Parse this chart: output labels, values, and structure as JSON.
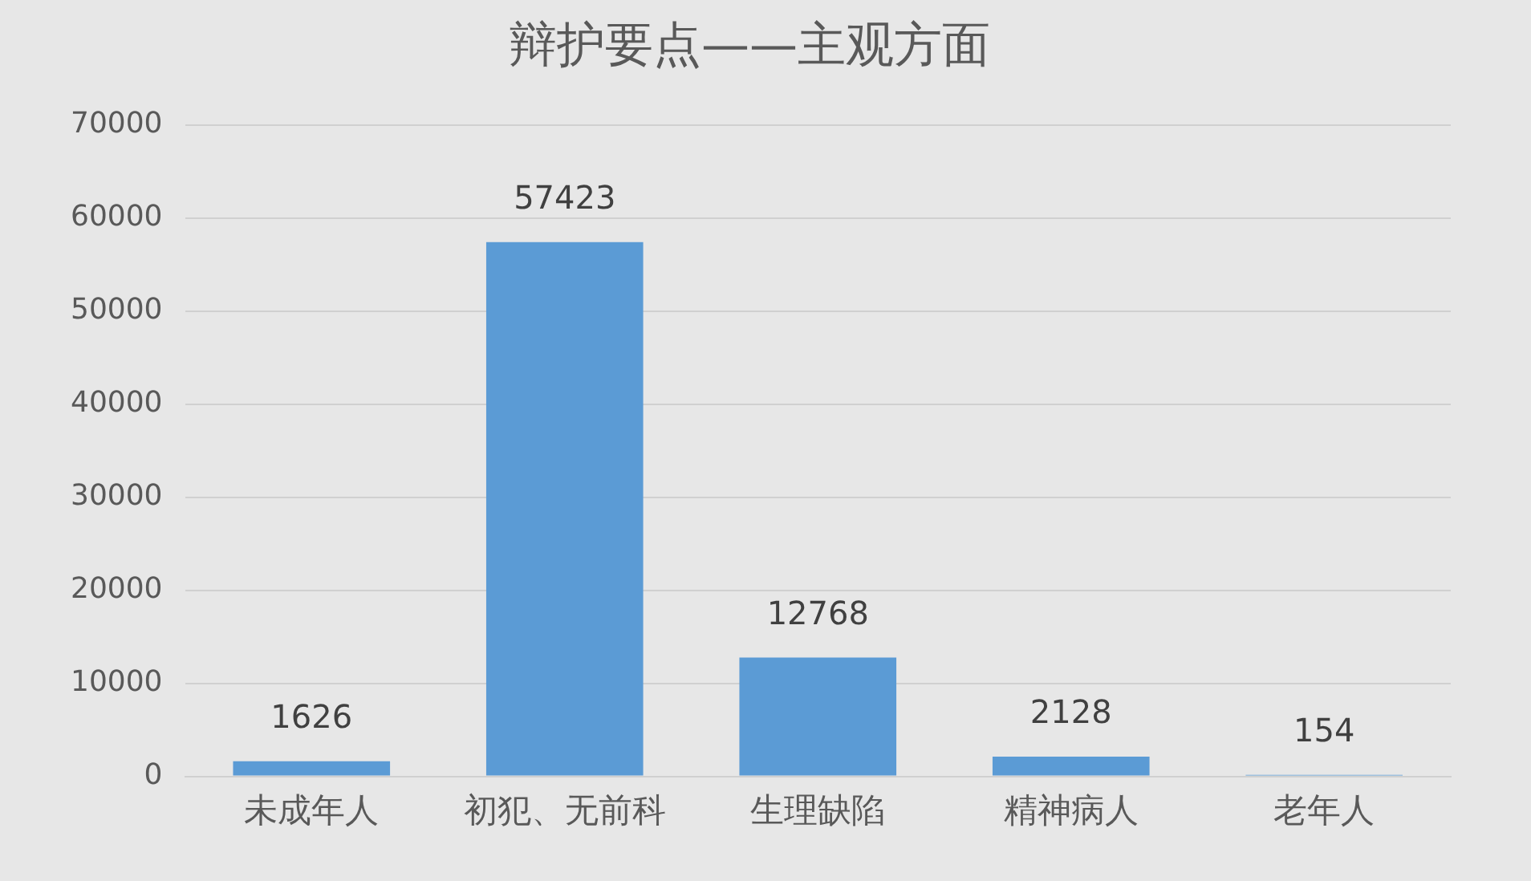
{
  "chart_data": {
    "type": "bar",
    "title": "辩护要点——主观方面",
    "categories": [
      "未成年人",
      "初犯、无前科",
      "生理缺陷",
      "精神病人",
      "老年人"
    ],
    "values": [
      1626,
      57423,
      12768,
      2128,
      154
    ],
    "color": "#5b9bd5",
    "ylim": [
      0,
      70000
    ],
    "yticks": [
      0,
      10000,
      20000,
      30000,
      40000,
      50000,
      60000,
      70000
    ],
    "grid": "y",
    "data_labels": true,
    "legend": false
  }
}
